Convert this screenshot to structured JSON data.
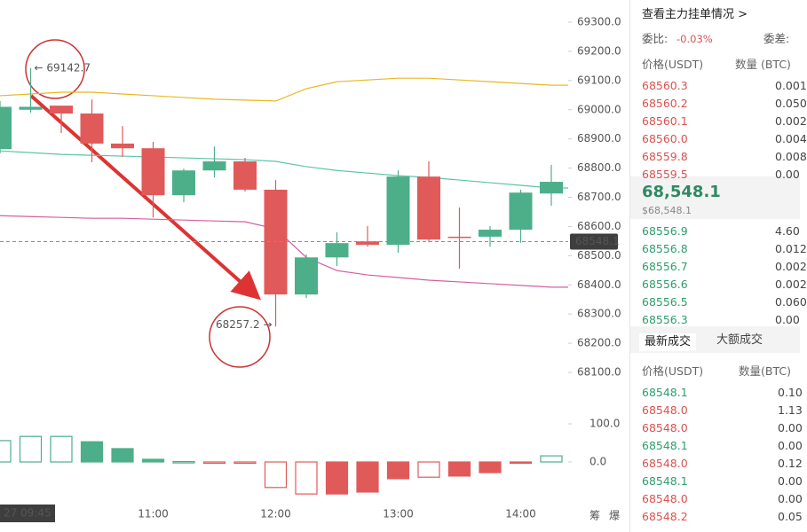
{
  "chart_data": {
    "type": "candlestick",
    "categories": [
      null,
      null,
      null,
      null,
      null,
      "11:00",
      null,
      null,
      null,
      "12:00",
      null,
      null,
      null,
      "13:00",
      null,
      null,
      null,
      "14:00",
      null
    ],
    "open": [
      68865,
      69000,
      69014,
      68987,
      68884,
      68868,
      68707,
      68792,
      68823,
      68726,
      68367,
      68494,
      68549,
      68537,
      68771,
      68565,
      68565,
      68589,
      68713
    ],
    "high": [
      69030,
      69142.7,
      69014,
      69035,
      68944,
      68890,
      68798,
      68874,
      68835,
      68759,
      68504,
      68580,
      68601,
      68792,
      68823,
      68665,
      68601,
      68726,
      68811
    ],
    "low": [
      68850,
      68990,
      68920,
      68820,
      68838,
      68631,
      68683,
      68768,
      68720,
      68257.2,
      68355,
      68464,
      68531,
      68510,
      68546,
      68455,
      68531,
      68544,
      68671
    ],
    "close": [
      69010,
      69010,
      68987,
      68884,
      68868,
      68707,
      68792,
      68823,
      68726,
      68367,
      68494,
      68543,
      68537,
      68771,
      68555,
      68562,
      68589,
      68716,
      68753
    ],
    "up_color": "#4caf8a",
    "down_color": "#e05a5a",
    "bands": [
      {
        "color": "#e8b820",
        "values": [
          69048,
          69054,
          69060,
          69060,
          69054,
          69048,
          69042,
          69036,
          69033,
          69030,
          69072,
          69096,
          69102,
          69108,
          69108,
          69102,
          69096,
          69090,
          69084
        ]
      },
      {
        "color": "#5cc4a8",
        "values": [
          68859,
          68853,
          68847,
          68844,
          68841,
          68838,
          68835,
          68832,
          68829,
          68823,
          68805,
          68792,
          68783,
          68774,
          68768,
          68759,
          68750,
          68741,
          68732
        ]
      },
      {
        "color": "#d45fa0",
        "values": [
          68637,
          68634,
          68631,
          68628,
          68628,
          68625,
          68622,
          68619,
          68616,
          68592,
          68494,
          68449,
          68434,
          68425,
          68416,
          68410,
          68404,
          68398,
          68392
        ]
      }
    ],
    "ylim": [
      68100,
      69300
    ],
    "yticks": [
      {
        "value": 68100,
        "label": "68100.0"
      },
      {
        "value": 68200,
        "label": "68200.0"
      },
      {
        "value": 68300,
        "label": "68300.0"
      },
      {
        "value": 68400,
        "label": "68400.0"
      },
      {
        "value": 68500,
        "label": "68500.0"
      },
      {
        "value": 68600,
        "label": "68600.0"
      },
      {
        "value": 68700,
        "label": "68700.0"
      },
      {
        "value": 68800,
        "label": "68800.0"
      },
      {
        "value": 68900,
        "label": "68900.0"
      },
      {
        "value": 69000,
        "label": "69000.0"
      },
      {
        "value": 69100,
        "label": "69100.0"
      },
      {
        "value": 69200,
        "label": "69200.0"
      },
      {
        "value": 69300,
        "label": "69300.0"
      }
    ],
    "last_price": 68548.1,
    "annotations": [
      "← 69142.7",
      "68257.2 →"
    ],
    "time_badge": "27 09:45",
    "corner_labels": [
      "筹",
      "爆"
    ],
    "indicator": {
      "values": [
        56,
        67,
        67,
        53,
        35,
        7,
        1,
        -1,
        -3,
        -67,
        -84,
        -84,
        -79,
        -44,
        -40,
        -37,
        -28,
        -2,
        16
      ],
      "hollow": [
        true,
        true,
        true,
        false,
        false,
        false,
        true,
        true,
        true,
        true,
        true,
        false,
        false,
        false,
        true,
        false,
        false,
        false,
        true
      ],
      "ylim": [
        -100,
        100
      ],
      "yticks": [
        {
          "value": 0,
          "label": "0.0"
        },
        {
          "value": 100,
          "label": "100.0"
        }
      ]
    }
  },
  "order_book": {
    "title": "查看主力挂单情况 >",
    "ratio_label": "委比:",
    "ratio": "-0.03%",
    "diff_label": "委差:",
    "headers": [
      "价格(USDT)",
      "数量 (BTC)"
    ],
    "asks": [
      {
        "price": "68560.3",
        "qty": "0.001"
      },
      {
        "price": "68560.2",
        "qty": "0.050"
      },
      {
        "price": "68560.1",
        "qty": "0.002"
      },
      {
        "price": "68560.0",
        "qty": "0.004"
      },
      {
        "price": "68559.8",
        "qty": "0.008"
      },
      {
        "price": "68559.5",
        "qty": "0.00"
      }
    ],
    "last": "68,548.1",
    "last_usd": "$68,548.1",
    "bids": [
      {
        "price": "68556.9",
        "qty": "4.60"
      },
      {
        "price": "68556.8",
        "qty": "0.012"
      },
      {
        "price": "68556.7",
        "qty": "0.002"
      },
      {
        "price": "68556.6",
        "qty": "0.002"
      },
      {
        "price": "68556.5",
        "qty": "0.060"
      },
      {
        "price": "68556.3",
        "qty": "0.00"
      }
    ]
  },
  "trades": {
    "tabs": [
      "最新成交",
      "大额成交"
    ],
    "headers": [
      "价格(USDT)",
      "数量(BTC)"
    ],
    "rows": [
      {
        "price": "68548.1",
        "qty": "0.10",
        "color": "#2e9e6e"
      },
      {
        "price": "68548.0",
        "qty": "1.13",
        "color": "#d9534f"
      },
      {
        "price": "68548.0",
        "qty": "0.00",
        "color": "#d9534f"
      },
      {
        "price": "68548.1",
        "qty": "0.00",
        "color": "#2e9e6e"
      },
      {
        "price": "68548.0",
        "qty": "0.12",
        "color": "#d9534f"
      },
      {
        "price": "68548.1",
        "qty": "0.00",
        "color": "#2e9e6e"
      },
      {
        "price": "68548.0",
        "qty": "0.00",
        "color": "#d9534f"
      },
      {
        "price": "68548.2",
        "qty": "0.05",
        "color": "#d9534f"
      }
    ]
  }
}
